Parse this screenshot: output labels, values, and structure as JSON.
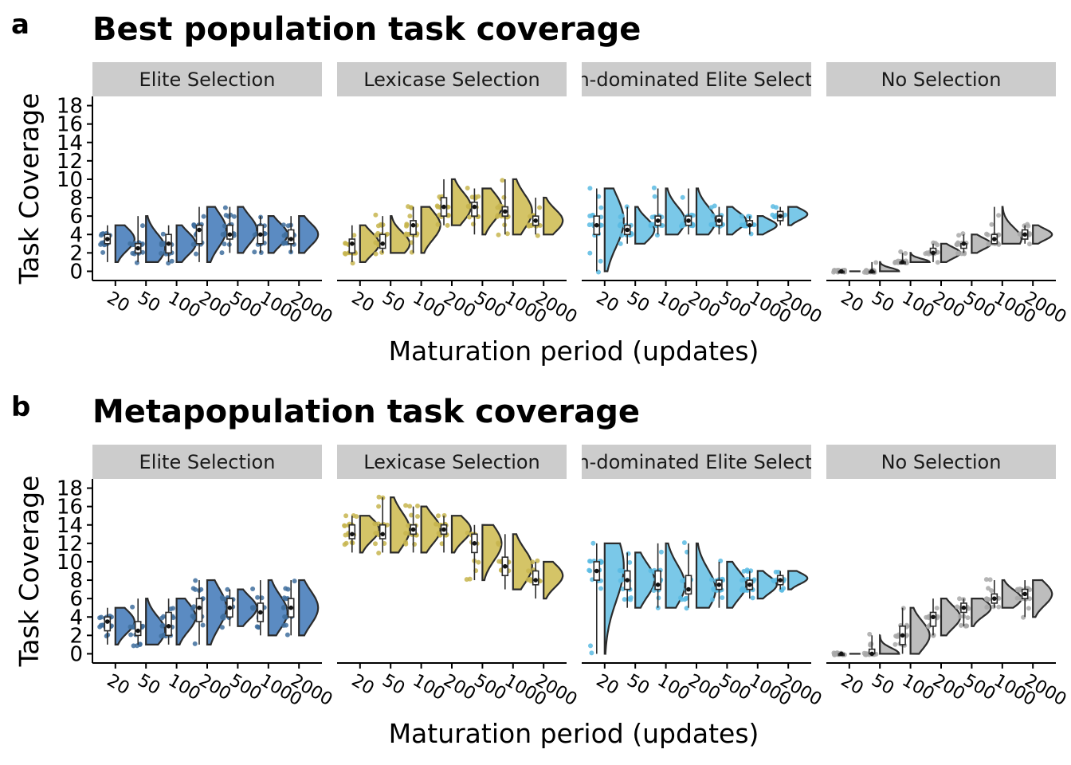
{
  "colors": {
    "Elite Selection": "#5b8bc2",
    "Lexicase Selection": "#d4c467",
    "Non-dominated Elite Selection": "#7ac8e8",
    "No Selection": "#bdbdbd",
    "Elite Selection_pt": "#3f6e9e",
    "Lexicase Selection_pt": "#c7b54f",
    "Non-dominated Elite Selection_pt": "#5bbbe3",
    "No Selection_pt": "#a9a9a9"
  },
  "chart_data": [
    {
      "type": "violin",
      "panel_letter": "a",
      "title": "Best population task coverage",
      "xlabel": "Maturation period (updates)",
      "ylabel": "Task Coverage",
      "ylim": [
        -1,
        19
      ],
      "yticks": [
        "0",
        "2",
        "4",
        "6",
        "8",
        "10",
        "12",
        "14",
        "16",
        "18"
      ],
      "categories": [
        "20",
        "50",
        "100",
        "200",
        "500",
        "1000",
        "2000"
      ],
      "facets": [
        {
          "name": "Elite Selection",
          "groups": [
            {
              "min": 1,
              "q1": 3,
              "median": 3.5,
              "q3": 4,
              "max": 5,
              "mode": 3.5
            },
            {
              "min": 1,
              "q1": 2,
              "median": 2.5,
              "q3": 3,
              "max": 6,
              "mode": 2.5
            },
            {
              "min": 1,
              "q1": 2,
              "median": 3,
              "q3": 4,
              "max": 5,
              "mode": 3
            },
            {
              "min": 1,
              "q1": 3,
              "median": 4.5,
              "q3": 5,
              "max": 7,
              "mode": 4.5
            },
            {
              "min": 2,
              "q1": 3.5,
              "median": 4,
              "q3": 5,
              "max": 7,
              "mode": 4.5
            },
            {
              "min": 2,
              "q1": 3,
              "median": 4,
              "q3": 5,
              "max": 6,
              "mode": 4
            },
            {
              "min": 2,
              "q1": 3,
              "median": 3.5,
              "q3": 4.5,
              "max": 6,
              "mode": 4
            }
          ]
        },
        {
          "name": "Lexicase Selection",
          "groups": [
            {
              "min": 1,
              "q1": 2,
              "median": 3,
              "q3": 3.5,
              "max": 5,
              "mode": 3
            },
            {
              "min": 2,
              "q1": 2.5,
              "median": 3,
              "q3": 4,
              "max": 6,
              "mode": 3
            },
            {
              "min": 2,
              "q1": 4,
              "median": 5,
              "q3": 5.5,
              "max": 7,
              "mode": 5
            },
            {
              "min": 5,
              "q1": 6,
              "median": 7,
              "q3": 8,
              "max": 10,
              "mode": 7
            },
            {
              "min": 4,
              "q1": 6,
              "median": 7,
              "q3": 7.5,
              "max": 9,
              "mode": 7
            },
            {
              "min": 4,
              "q1": 6,
              "median": 6.5,
              "q3": 7,
              "max": 10,
              "mode": 6.5
            },
            {
              "min": 4,
              "q1": 5,
              "median": 5.5,
              "q3": 6,
              "max": 8,
              "mode": 5.5
            }
          ]
        },
        {
          "name": "Non-dominated Elite Selection",
          "groups": [
            {
              "min": 0,
              "q1": 4,
              "median": 5,
              "q3": 6,
              "max": 9,
              "mode": 5.5
            },
            {
              "min": 3,
              "q1": 4,
              "median": 4.5,
              "q3": 5,
              "max": 7,
              "mode": 4.5
            },
            {
              "min": 4,
              "q1": 5,
              "median": 5.5,
              "q3": 6,
              "max": 9,
              "mode": 5.5
            },
            {
              "min": 4,
              "q1": 5,
              "median": 5.5,
              "q3": 6,
              "max": 9,
              "mode": 5.5
            },
            {
              "min": 4,
              "q1": 5,
              "median": 5.5,
              "q3": 6,
              "max": 7,
              "mode": 5.5
            },
            {
              "min": 4,
              "q1": 5,
              "median": 5,
              "q3": 5.5,
              "max": 6,
              "mode": 5
            },
            {
              "min": 5,
              "q1": 5.5,
              "median": 6,
              "q3": 6.5,
              "max": 7,
              "mode": 6.2
            }
          ]
        },
        {
          "name": "No Selection",
          "groups": [
            {
              "min": 0,
              "q1": 0,
              "median": 0,
              "q3": 0,
              "max": 0,
              "mode": 0
            },
            {
              "min": 0,
              "q1": 0,
              "median": 0,
              "q3": 0,
              "max": 1,
              "mode": 0
            },
            {
              "min": 1,
              "q1": 1,
              "median": 1,
              "q3": 1,
              "max": 2,
              "mode": 1
            },
            {
              "min": 1,
              "q1": 2,
              "median": 2,
              "q3": 2.5,
              "max": 3,
              "mode": 2
            },
            {
              "min": 2,
              "q1": 2.5,
              "median": 3,
              "q3": 3,
              "max": 4,
              "mode": 3
            },
            {
              "min": 3,
              "q1": 3,
              "median": 3.5,
              "q3": 4,
              "max": 7,
              "mode": 3.5
            },
            {
              "min": 3,
              "q1": 3.5,
              "median": 4,
              "q3": 4.5,
              "max": 5,
              "mode": 4
            }
          ]
        }
      ]
    },
    {
      "type": "violin",
      "panel_letter": "b",
      "title": "Metapopulation task coverage",
      "xlabel": "Maturation period (updates)",
      "ylabel": "Task Coverage",
      "ylim": [
        -1,
        19
      ],
      "yticks": [
        "0",
        "2",
        "4",
        "6",
        "8",
        "10",
        "12",
        "14",
        "16",
        "18"
      ],
      "categories": [
        "20",
        "50",
        "100",
        "200",
        "500",
        "1000",
        "2000"
      ],
      "facets": [
        {
          "name": "Elite Selection",
          "groups": [
            {
              "min": 1,
              "q1": 2.5,
              "median": 3.5,
              "q3": 4,
              "max": 5,
              "mode": 3.5
            },
            {
              "min": 1,
              "q1": 2,
              "median": 2.5,
              "q3": 3.5,
              "max": 6,
              "mode": 2.5
            },
            {
              "min": 1,
              "q1": 2,
              "median": 3,
              "q3": 4.5,
              "max": 6,
              "mode": 4
            },
            {
              "min": 1,
              "q1": 3.5,
              "median": 5,
              "q3": 6,
              "max": 8,
              "mode": 5
            },
            {
              "min": 3,
              "q1": 4,
              "median": 5,
              "q3": 6,
              "max": 7,
              "mode": 5
            },
            {
              "min": 2,
              "q1": 3.5,
              "median": 4.5,
              "q3": 5.5,
              "max": 8,
              "mode": 4.5
            },
            {
              "min": 2,
              "q1": 4,
              "median": 5,
              "q3": 6,
              "max": 8,
              "mode": 5
            }
          ]
        },
        {
          "name": "Lexicase Selection",
          "groups": [
            {
              "min": 11,
              "q1": 12.5,
              "median": 13,
              "q3": 14,
              "max": 15,
              "mode": 13.5
            },
            {
              "min": 11,
              "q1": 12.5,
              "median": 13,
              "q3": 14,
              "max": 17,
              "mode": 13.5
            },
            {
              "min": 11,
              "q1": 13,
              "median": 13.5,
              "q3": 14,
              "max": 16,
              "mode": 13.5
            },
            {
              "min": 11,
              "q1": 13,
              "median": 13.5,
              "q3": 14,
              "max": 15,
              "mode": 13.5
            },
            {
              "min": 8,
              "q1": 11,
              "median": 12,
              "q3": 13,
              "max": 14,
              "mode": 12
            },
            {
              "min": 7,
              "q1": 8.5,
              "median": 9.5,
              "q3": 10.5,
              "max": 13,
              "mode": 9.5
            },
            {
              "min": 6,
              "q1": 7.5,
              "median": 8,
              "q3": 9,
              "max": 10,
              "mode": 8.5
            }
          ]
        },
        {
          "name": "Non-dominated Elite Selection",
          "groups": [
            {
              "min": 0,
              "q1": 8,
              "median": 9,
              "q3": 10,
              "max": 12,
              "mode": 9.5
            },
            {
              "min": 5,
              "q1": 7,
              "median": 8,
              "q3": 9,
              "max": 11,
              "mode": 8
            },
            {
              "min": 5,
              "q1": 7,
              "median": 7.5,
              "q3": 9,
              "max": 12,
              "mode": 7.5
            },
            {
              "min": 5,
              "q1": 6.5,
              "median": 7,
              "q3": 8.5,
              "max": 12,
              "mode": 7
            },
            {
              "min": 5,
              "q1": 7,
              "median": 7.5,
              "q3": 8,
              "max": 10,
              "mode": 7.5
            },
            {
              "min": 6,
              "q1": 7,
              "median": 7.5,
              "q3": 8,
              "max": 9,
              "mode": 7.5
            },
            {
              "min": 7,
              "q1": 7.5,
              "median": 8,
              "q3": 8.5,
              "max": 9,
              "mode": 8.2
            }
          ]
        },
        {
          "name": "No Selection",
          "groups": [
            {
              "min": 0,
              "q1": 0,
              "median": 0,
              "q3": 0,
              "max": 0,
              "mode": 0
            },
            {
              "min": 0,
              "q1": 0,
              "median": 0,
              "q3": 0.5,
              "max": 2,
              "mode": 0
            },
            {
              "min": 0,
              "q1": 1,
              "median": 2,
              "q3": 3,
              "max": 5,
              "mode": 2
            },
            {
              "min": 2,
              "q1": 3,
              "median": 4,
              "q3": 4.5,
              "max": 6,
              "mode": 4
            },
            {
              "min": 3,
              "q1": 4.5,
              "median": 5,
              "q3": 5.5,
              "max": 6,
              "mode": 5
            },
            {
              "min": 5,
              "q1": 5.5,
              "median": 6,
              "q3": 6.5,
              "max": 8,
              "mode": 6
            },
            {
              "min": 4,
              "q1": 6,
              "median": 6.5,
              "q3": 7,
              "max": 8,
              "mode": 6.5
            }
          ]
        }
      ]
    }
  ],
  "strip_labels": [
    "Elite Selection",
    "Lexicase Selection",
    "Non-dominated Elite Selection",
    "No Selection"
  ]
}
